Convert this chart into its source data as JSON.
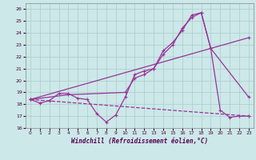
{
  "xlabel": "Windchill (Refroidissement éolien,°C)",
  "background_color": "#cce8e8",
  "grid_color": "#aacccc",
  "line_color": "#993399",
  "xlim": [
    -0.5,
    23.5
  ],
  "ylim": [
    16,
    26.5
  ],
  "yticks": [
    16,
    17,
    18,
    19,
    20,
    21,
    22,
    23,
    24,
    25,
    26
  ],
  "xticks": [
    0,
    1,
    2,
    3,
    4,
    5,
    6,
    7,
    8,
    9,
    10,
    11,
    12,
    13,
    14,
    15,
    16,
    17,
    18,
    19,
    20,
    21,
    22,
    23
  ],
  "series": [
    {
      "x": [
        0,
        1,
        2,
        3,
        4,
        5,
        6,
        7,
        8,
        9,
        10,
        11,
        12,
        13,
        14,
        15,
        16,
        17,
        18,
        19,
        20,
        21,
        22,
        23
      ],
      "y": [
        18.4,
        18.1,
        18.3,
        18.9,
        18.9,
        18.5,
        18.4,
        17.2,
        16.5,
        17.1,
        18.6,
        20.5,
        20.8,
        21.0,
        22.2,
        23.0,
        24.4,
        25.3,
        25.7,
        22.7,
        17.5,
        16.9,
        17.0,
        17.0
      ],
      "style": "-",
      "marker": "+",
      "markersize": 3,
      "linewidth": 0.9
    },
    {
      "x": [
        0,
        4,
        10,
        11,
        12,
        13,
        14,
        15,
        16,
        17,
        18,
        19,
        23
      ],
      "y": [
        18.4,
        18.8,
        19.0,
        20.2,
        20.5,
        21.0,
        22.5,
        23.2,
        24.2,
        25.5,
        25.7,
        22.7,
        18.6
      ],
      "style": "-",
      "marker": "+",
      "markersize": 3,
      "linewidth": 0.9
    },
    {
      "x": [
        0,
        23
      ],
      "y": [
        18.4,
        23.6
      ],
      "style": "-",
      "marker": "+",
      "markersize": 3,
      "linewidth": 0.9
    },
    {
      "x": [
        0,
        23
      ],
      "y": [
        18.4,
        17.0
      ],
      "style": "--",
      "marker": "+",
      "markersize": 3,
      "linewidth": 0.9
    }
  ]
}
